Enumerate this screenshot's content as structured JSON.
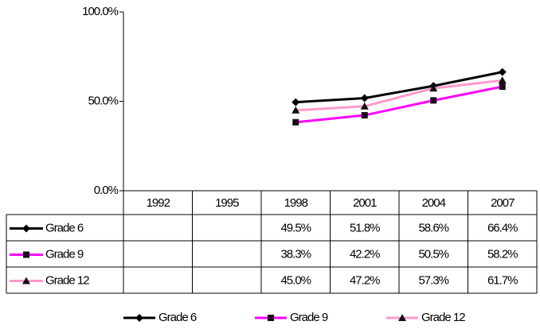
{
  "chart_data": {
    "type": "line",
    "categories": [
      "1992",
      "1995",
      "1998",
      "2001",
      "2004",
      "2007"
    ],
    "series": [
      {
        "name": "Grade 6",
        "color": "#000000",
        "marker": "diamond",
        "marker_color": "#000000",
        "values": [
          null,
          null,
          49.5,
          51.8,
          58.6,
          66.4
        ],
        "value_labels": [
          null,
          null,
          "49.5%",
          "51.8%",
          "58.6%",
          "66.4%"
        ]
      },
      {
        "name": "Grade 9",
        "color": "#ff00ff",
        "marker": "square",
        "marker_color": "#1a0a1a",
        "values": [
          null,
          null,
          38.3,
          42.2,
          50.5,
          58.2
        ],
        "value_labels": [
          null,
          null,
          "38.3%",
          "42.2%",
          "50.5%",
          "58.2%"
        ]
      },
      {
        "name": "Grade 12",
        "color": "#ff99cc",
        "marker": "triangle",
        "marker_color": "#111111",
        "values": [
          null,
          null,
          45.0,
          47.2,
          57.3,
          61.7
        ],
        "value_labels": [
          null,
          null,
          "45.0%",
          "47.2%",
          "57.3%",
          "61.7%"
        ]
      }
    ],
    "ylim": [
      0,
      100
    ],
    "yticks": [
      {
        "value": 0,
        "label": "0.0%"
      },
      {
        "value": 50,
        "label": "50.0%"
      },
      {
        "value": 100,
        "label": "100.0%"
      }
    ],
    "grid": false,
    "legend": "bottom"
  }
}
